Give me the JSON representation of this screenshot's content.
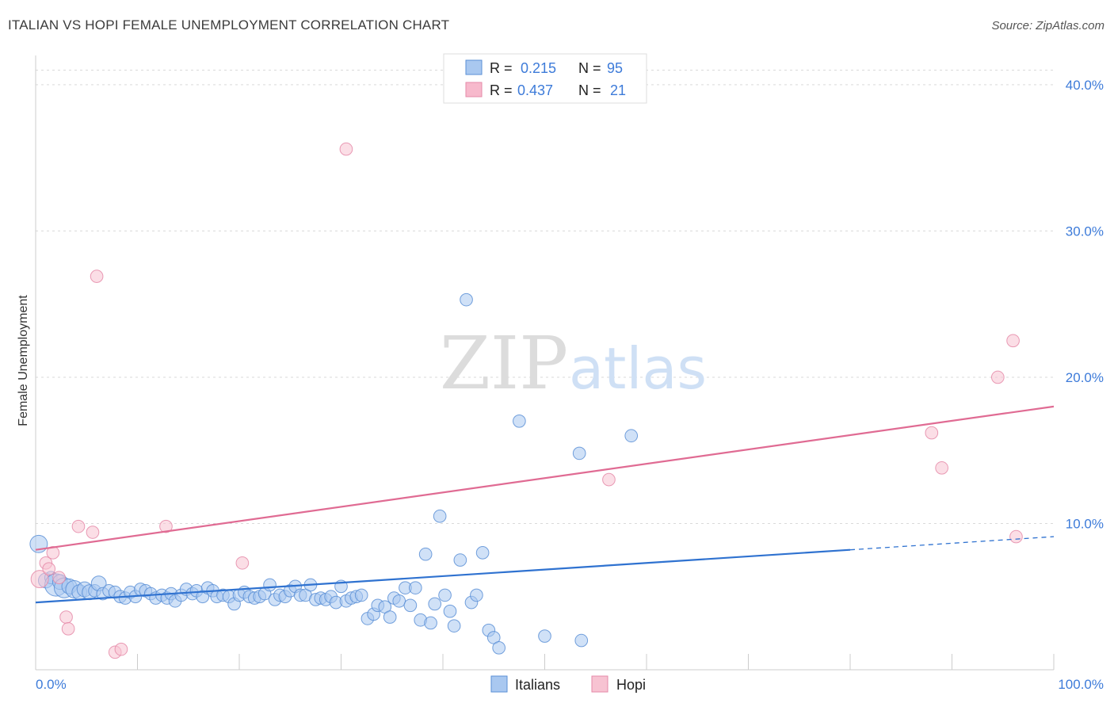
{
  "header": {
    "title": "ITALIAN VS HOPI FEMALE UNEMPLOYMENT CORRELATION CHART",
    "source": "Source: ZipAtlas.com"
  },
  "watermark": {
    "zip": "ZIP",
    "atlas": "atlas"
  },
  "chart_data": {
    "type": "scatter",
    "title": "ITALIAN VS HOPI FEMALE UNEMPLOYMENT CORRELATION CHART",
    "xlabel": "",
    "ylabel": "Female Unemployment",
    "xlim": [
      0,
      100
    ],
    "ylim": [
      0,
      42
    ],
    "x_tick_labels": [
      "0.0%",
      "100.0%"
    ],
    "y_ticks": [
      10,
      20,
      30,
      40
    ],
    "y_tick_labels": [
      "10.0%",
      "20.0%",
      "30.0%",
      "40.0%"
    ],
    "grid": true,
    "legend": {
      "placement": "top-center",
      "entries": [
        {
          "r_label": "R =",
          "r_value": "0.215",
          "n_label": "N =",
          "n_value": "95",
          "color": "#a9c8f0"
        },
        {
          "r_label": "R =",
          "r_value": "0.437",
          "n_label": "N =",
          "n_value": "21",
          "color": "#f7b9cc"
        }
      ]
    },
    "bottom_legend": [
      "Italians",
      "Hopi"
    ],
    "colors": {
      "italians_fill": "#a9c8f0",
      "italians_stroke": "#5a8fd6",
      "italians_line": "#2f72d0",
      "hopi_fill": "#f7c3d2",
      "hopi_stroke": "#e58aa8",
      "hopi_line": "#e06b93"
    },
    "series": [
      {
        "name": "Italians",
        "trend": {
          "x0": 0,
          "y0": 4.6,
          "x1": 80,
          "y1": 8.2,
          "dash_to_x": 100,
          "dash_to_y": 9.1
        },
        "points": [
          [
            0.3,
            8.6,
            14
          ],
          [
            1.0,
            6.1,
            12
          ],
          [
            1.5,
            6.3,
            10
          ],
          [
            2.0,
            5.8,
            18
          ],
          [
            2.4,
            6.0,
            12
          ],
          [
            2.8,
            5.6,
            16
          ],
          [
            3.3,
            5.7,
            12
          ],
          [
            3.8,
            5.5,
            14
          ],
          [
            4.3,
            5.3,
            12
          ],
          [
            4.8,
            5.5,
            12
          ],
          [
            5.3,
            5.3,
            12
          ],
          [
            5.8,
            5.4,
            10
          ],
          [
            6.2,
            5.9,
            12
          ],
          [
            6.6,
            5.2,
            10
          ],
          [
            7.2,
            5.4,
            10
          ],
          [
            7.8,
            5.3,
            10
          ],
          [
            8.3,
            5.0,
            10
          ],
          [
            8.8,
            4.9,
            10
          ],
          [
            9.3,
            5.3,
            10
          ],
          [
            9.8,
            5.0,
            10
          ],
          [
            10.3,
            5.5,
            10
          ],
          [
            10.8,
            5.4,
            10
          ],
          [
            11.3,
            5.2,
            10
          ],
          [
            11.8,
            4.9,
            10
          ],
          [
            12.4,
            5.1,
            10
          ],
          [
            12.9,
            4.9,
            10
          ],
          [
            13.3,
            5.2,
            10
          ],
          [
            13.7,
            4.7,
            10
          ],
          [
            14.3,
            5.1,
            10
          ],
          [
            14.8,
            5.5,
            10
          ],
          [
            15.4,
            5.2,
            10
          ],
          [
            15.8,
            5.4,
            10
          ],
          [
            16.4,
            5.0,
            10
          ],
          [
            16.9,
            5.6,
            10
          ],
          [
            17.4,
            5.4,
            10
          ],
          [
            17.8,
            5.0,
            10
          ],
          [
            18.4,
            5.1,
            10
          ],
          [
            19.0,
            5.0,
            10
          ],
          [
            19.5,
            4.5,
            10
          ],
          [
            20.0,
            5.1,
            10
          ],
          [
            20.5,
            5.3,
            10
          ],
          [
            21.0,
            5.0,
            10
          ],
          [
            21.5,
            4.9,
            10
          ],
          [
            22.0,
            5.0,
            10
          ],
          [
            22.5,
            5.2,
            10
          ],
          [
            23.0,
            5.8,
            10
          ],
          [
            23.5,
            4.8,
            10
          ],
          [
            24.0,
            5.1,
            10
          ],
          [
            24.5,
            5.0,
            10
          ],
          [
            25.0,
            5.4,
            10
          ],
          [
            25.5,
            5.7,
            10
          ],
          [
            26.0,
            5.1,
            10
          ],
          [
            26.5,
            5.1,
            10
          ],
          [
            27.0,
            5.8,
            10
          ],
          [
            27.5,
            4.8,
            10
          ],
          [
            28.0,
            4.9,
            10
          ],
          [
            28.5,
            4.8,
            10
          ],
          [
            29.0,
            5.0,
            10
          ],
          [
            29.5,
            4.6,
            10
          ],
          [
            30.0,
            5.7,
            10
          ],
          [
            30.5,
            4.7,
            10
          ],
          [
            31.0,
            4.9,
            10
          ],
          [
            31.5,
            5.0,
            10
          ],
          [
            32.0,
            5.1,
            10
          ],
          [
            32.6,
            3.5,
            10
          ],
          [
            33.2,
            3.8,
            10
          ],
          [
            33.6,
            4.4,
            10
          ],
          [
            34.3,
            4.3,
            10
          ],
          [
            34.8,
            3.6,
            10
          ],
          [
            35.2,
            4.9,
            10
          ],
          [
            35.7,
            4.7,
            10
          ],
          [
            36.3,
            5.6,
            10
          ],
          [
            36.8,
            4.4,
            10
          ],
          [
            37.3,
            5.6,
            10
          ],
          [
            37.8,
            3.4,
            10
          ],
          [
            38.3,
            7.9,
            10
          ],
          [
            38.8,
            3.2,
            10
          ],
          [
            39.2,
            4.5,
            10
          ],
          [
            39.7,
            10.5,
            10
          ],
          [
            40.2,
            5.1,
            10
          ],
          [
            40.7,
            4.0,
            10
          ],
          [
            41.1,
            3.0,
            10
          ],
          [
            41.7,
            7.5,
            10
          ],
          [
            42.3,
            25.3,
            10
          ],
          [
            42.8,
            4.6,
            10
          ],
          [
            43.3,
            5.1,
            10
          ],
          [
            43.9,
            8.0,
            10
          ],
          [
            44.5,
            2.7,
            10
          ],
          [
            45.0,
            2.2,
            10
          ],
          [
            45.5,
            1.5,
            10
          ],
          [
            47.5,
            17.0,
            10
          ],
          [
            50.0,
            2.3,
            10
          ],
          [
            53.4,
            14.8,
            10
          ],
          [
            53.6,
            2.0,
            10
          ],
          [
            58.5,
            16.0,
            10
          ]
        ]
      },
      {
        "name": "Hopi",
        "trend": {
          "x0": 0,
          "y0": 8.2,
          "x1": 100,
          "y1": 18.0
        },
        "points": [
          [
            0.4,
            6.2,
            14
          ],
          [
            1.0,
            7.3,
            10
          ],
          [
            1.3,
            6.9,
            10
          ],
          [
            1.7,
            8.0,
            10
          ],
          [
            2.3,
            6.3,
            10
          ],
          [
            3.0,
            3.6,
            10
          ],
          [
            3.2,
            2.8,
            10
          ],
          [
            4.2,
            9.8,
            10
          ],
          [
            5.6,
            9.4,
            10
          ],
          [
            6.0,
            26.9,
            10
          ],
          [
            7.8,
            1.2,
            10
          ],
          [
            8.4,
            1.4,
            10
          ],
          [
            12.8,
            9.8,
            10
          ],
          [
            20.3,
            7.3,
            10
          ],
          [
            30.5,
            35.6,
            10
          ],
          [
            56.3,
            13.0,
            10
          ],
          [
            88.0,
            16.2,
            10
          ],
          [
            89.0,
            13.8,
            10
          ],
          [
            94.5,
            20.0,
            10
          ],
          [
            96.0,
            22.5,
            10
          ],
          [
            96.3,
            9.1,
            10
          ]
        ]
      }
    ]
  }
}
